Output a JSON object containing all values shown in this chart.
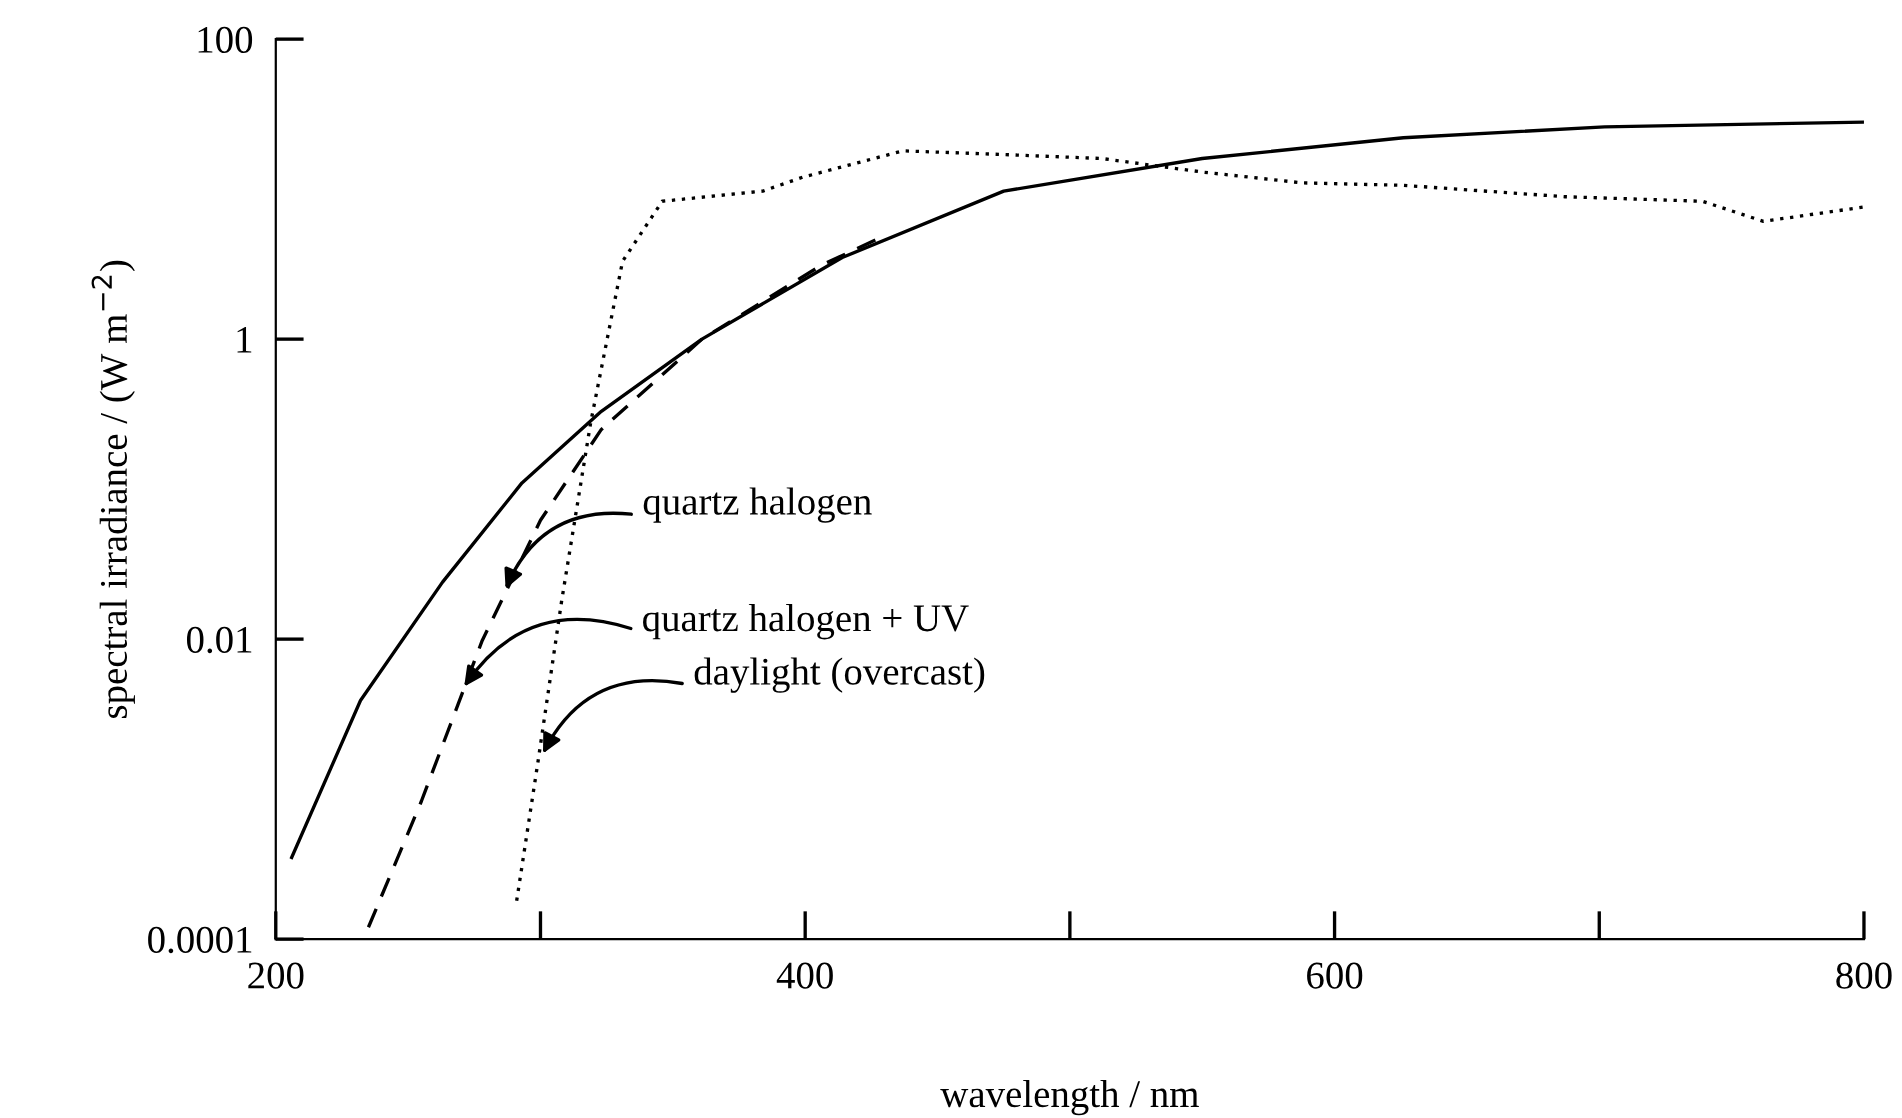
{
  "chart_data": {
    "type": "line",
    "xlabel": "wavelength / nm",
    "ylabel": "spectral irradiance / (W m$^{−2}$)",
    "log": "y",
    "grid": false,
    "legend": false,
    "xlim": [
      200,
      800
    ],
    "xticks": [
      200,
      {
        "value": 300,
        "label": null
      },
      400,
      {
        "value": 500,
        "label": null
      },
      600,
      {
        "value": 700,
        "label": null
      },
      800
    ],
    "ylim": [
      0.0001,
      100
    ],
    "yticks": [
      0.0001,
      0.01,
      1,
      100
    ],
    "series": [
      {
        "color": "#000000",
        "line_style": "solid",
        "x": [
          206,
          232,
          263,
          293,
          323,
          361,
          414,
          475,
          550,
          626,
          702,
          800
        ],
        "values": [
          0.00035,
          0.0039,
          0.024,
          0.11,
          0.33,
          1,
          3.5,
          9.7,
          16,
          22,
          26,
          28
        ]
      },
      {
        "color": "#000000",
        "line_style": "dashed",
        "x": [
          235,
          255,
          278,
          300,
          323,
          361,
          406,
          429
        ],
        "values": [
          0.00012,
          0.00083,
          0.0098,
          0.062,
          0.25,
          1,
          3.1,
          4.8
        ]
      },
      {
        "color": "#000000",
        "line_style": "dotted",
        "x": [
          291,
          299,
          308,
          319,
          331,
          346,
          384,
          399,
          437,
          475,
          512,
          550,
          588,
          626,
          687,
          739,
          762,
          800
        ],
        "values": [
          0.00018,
          0.0015,
          0.018,
          0.28,
          3.3,
          8.3,
          9.7,
          12,
          18,
          17,
          16,
          13,
          11,
          10.6,
          8.9,
          8.3,
          6.1,
          7.6
        ]
      }
    ],
    "annotations": [
      {
        "text": "quartz halogen",
        "x": 286,
        "y": 0.02
      },
      {
        "text": "quartz halogen + UV",
        "x": 270,
        "y": 0.0045
      },
      {
        "text": "daylight (overcast)",
        "x": 300,
        "y": 0.0016
      }
    ]
  }
}
